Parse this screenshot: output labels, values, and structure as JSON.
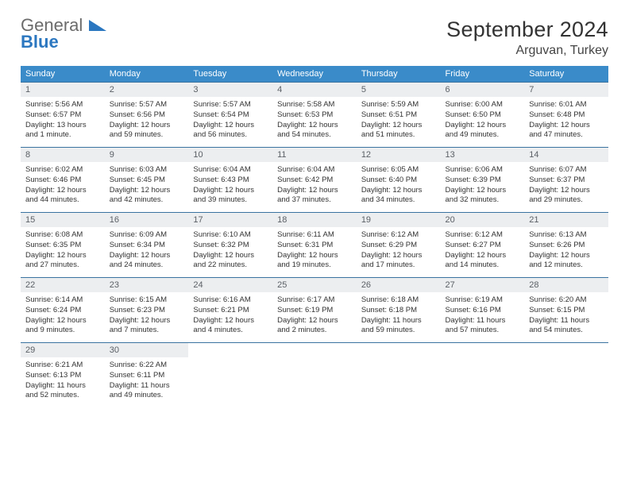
{
  "logo": {
    "line1": "General",
    "line2": "Blue"
  },
  "title": "September 2024",
  "location": "Arguvan, Turkey",
  "colors": {
    "header_bg": "#3a8bc9",
    "rule": "#3a73a0",
    "daynum_bg": "#eceef0",
    "brand_blue": "#2b77c0"
  },
  "weekdays": [
    "Sunday",
    "Monday",
    "Tuesday",
    "Wednesday",
    "Thursday",
    "Friday",
    "Saturday"
  ],
  "grid": {
    "rows": 5,
    "cols": 7,
    "first_day_col": 0,
    "days_in_month": 30
  },
  "days": [
    {
      "n": 1,
      "sunrise": "5:56 AM",
      "sunset": "6:57 PM",
      "daylight": "13 hours and 1 minute."
    },
    {
      "n": 2,
      "sunrise": "5:57 AM",
      "sunset": "6:56 PM",
      "daylight": "12 hours and 59 minutes."
    },
    {
      "n": 3,
      "sunrise": "5:57 AM",
      "sunset": "6:54 PM",
      "daylight": "12 hours and 56 minutes."
    },
    {
      "n": 4,
      "sunrise": "5:58 AM",
      "sunset": "6:53 PM",
      "daylight": "12 hours and 54 minutes."
    },
    {
      "n": 5,
      "sunrise": "5:59 AM",
      "sunset": "6:51 PM",
      "daylight": "12 hours and 51 minutes."
    },
    {
      "n": 6,
      "sunrise": "6:00 AM",
      "sunset": "6:50 PM",
      "daylight": "12 hours and 49 minutes."
    },
    {
      "n": 7,
      "sunrise": "6:01 AM",
      "sunset": "6:48 PM",
      "daylight": "12 hours and 47 minutes."
    },
    {
      "n": 8,
      "sunrise": "6:02 AM",
      "sunset": "6:46 PM",
      "daylight": "12 hours and 44 minutes."
    },
    {
      "n": 9,
      "sunrise": "6:03 AM",
      "sunset": "6:45 PM",
      "daylight": "12 hours and 42 minutes."
    },
    {
      "n": 10,
      "sunrise": "6:04 AM",
      "sunset": "6:43 PM",
      "daylight": "12 hours and 39 minutes."
    },
    {
      "n": 11,
      "sunrise": "6:04 AM",
      "sunset": "6:42 PM",
      "daylight": "12 hours and 37 minutes."
    },
    {
      "n": 12,
      "sunrise": "6:05 AM",
      "sunset": "6:40 PM",
      "daylight": "12 hours and 34 minutes."
    },
    {
      "n": 13,
      "sunrise": "6:06 AM",
      "sunset": "6:39 PM",
      "daylight": "12 hours and 32 minutes."
    },
    {
      "n": 14,
      "sunrise": "6:07 AM",
      "sunset": "6:37 PM",
      "daylight": "12 hours and 29 minutes."
    },
    {
      "n": 15,
      "sunrise": "6:08 AM",
      "sunset": "6:35 PM",
      "daylight": "12 hours and 27 minutes."
    },
    {
      "n": 16,
      "sunrise": "6:09 AM",
      "sunset": "6:34 PM",
      "daylight": "12 hours and 24 minutes."
    },
    {
      "n": 17,
      "sunrise": "6:10 AM",
      "sunset": "6:32 PM",
      "daylight": "12 hours and 22 minutes."
    },
    {
      "n": 18,
      "sunrise": "6:11 AM",
      "sunset": "6:31 PM",
      "daylight": "12 hours and 19 minutes."
    },
    {
      "n": 19,
      "sunrise": "6:12 AM",
      "sunset": "6:29 PM",
      "daylight": "12 hours and 17 minutes."
    },
    {
      "n": 20,
      "sunrise": "6:12 AM",
      "sunset": "6:27 PM",
      "daylight": "12 hours and 14 minutes."
    },
    {
      "n": 21,
      "sunrise": "6:13 AM",
      "sunset": "6:26 PM",
      "daylight": "12 hours and 12 minutes."
    },
    {
      "n": 22,
      "sunrise": "6:14 AM",
      "sunset": "6:24 PM",
      "daylight": "12 hours and 9 minutes."
    },
    {
      "n": 23,
      "sunrise": "6:15 AM",
      "sunset": "6:23 PM",
      "daylight": "12 hours and 7 minutes."
    },
    {
      "n": 24,
      "sunrise": "6:16 AM",
      "sunset": "6:21 PM",
      "daylight": "12 hours and 4 minutes."
    },
    {
      "n": 25,
      "sunrise": "6:17 AM",
      "sunset": "6:19 PM",
      "daylight": "12 hours and 2 minutes."
    },
    {
      "n": 26,
      "sunrise": "6:18 AM",
      "sunset": "6:18 PM",
      "daylight": "11 hours and 59 minutes."
    },
    {
      "n": 27,
      "sunrise": "6:19 AM",
      "sunset": "6:16 PM",
      "daylight": "11 hours and 57 minutes."
    },
    {
      "n": 28,
      "sunrise": "6:20 AM",
      "sunset": "6:15 PM",
      "daylight": "11 hours and 54 minutes."
    },
    {
      "n": 29,
      "sunrise": "6:21 AM",
      "sunset": "6:13 PM",
      "daylight": "11 hours and 52 minutes."
    },
    {
      "n": 30,
      "sunrise": "6:22 AM",
      "sunset": "6:11 PM",
      "daylight": "11 hours and 49 minutes."
    }
  ],
  "labels": {
    "sunrise": "Sunrise: ",
    "sunset": "Sunset: ",
    "daylight": "Daylight: "
  }
}
